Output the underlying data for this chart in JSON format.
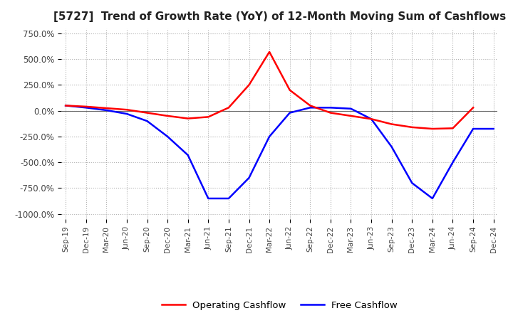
{
  "title": "[5727]  Trend of Growth Rate (YoY) of 12-Month Moving Sum of Cashflows",
  "title_fontsize": 11,
  "ylim": [
    -1050,
    800
  ],
  "yticks": [
    750,
    500,
    250,
    0,
    -250,
    -500,
    -750,
    -1000
  ],
  "ytick_labels": [
    "750.0%",
    "500.0%",
    "250.0%",
    "0.0%",
    "-250.0%",
    "-500.0%",
    "-750.0%",
    "-1000.0%"
  ],
  "xlabel_dates": [
    "Sep-19",
    "Dec-19",
    "Mar-20",
    "Jun-20",
    "Sep-20",
    "Dec-20",
    "Mar-21",
    "Jun-21",
    "Sep-21",
    "Dec-21",
    "Mar-22",
    "Jun-22",
    "Sep-22",
    "Dec-22",
    "Mar-23",
    "Jun-23",
    "Sep-23",
    "Dec-23",
    "Mar-24",
    "Jun-24",
    "Sep-24",
    "Dec-24"
  ],
  "operating_cashflow": [
    50,
    40,
    25,
    10,
    -20,
    -50,
    -75,
    -60,
    30,
    250,
    570,
    200,
    50,
    -20,
    -50,
    -80,
    -130,
    -160,
    -175,
    -170,
    30,
    null
  ],
  "free_cashflow": [
    50,
    30,
    5,
    -30,
    -100,
    -250,
    -430,
    -850,
    -850,
    -650,
    -250,
    -20,
    30,
    30,
    20,
    -80,
    -350,
    -700,
    -850,
    -500,
    -175,
    -175
  ],
  "op_color": "#ff0000",
  "free_color": "#0000ff",
  "grid_color": "#b0b0b0",
  "bg_color": "#ffffff",
  "legend_labels": [
    "Operating Cashflow",
    "Free Cashflow"
  ],
  "line_width": 1.8
}
